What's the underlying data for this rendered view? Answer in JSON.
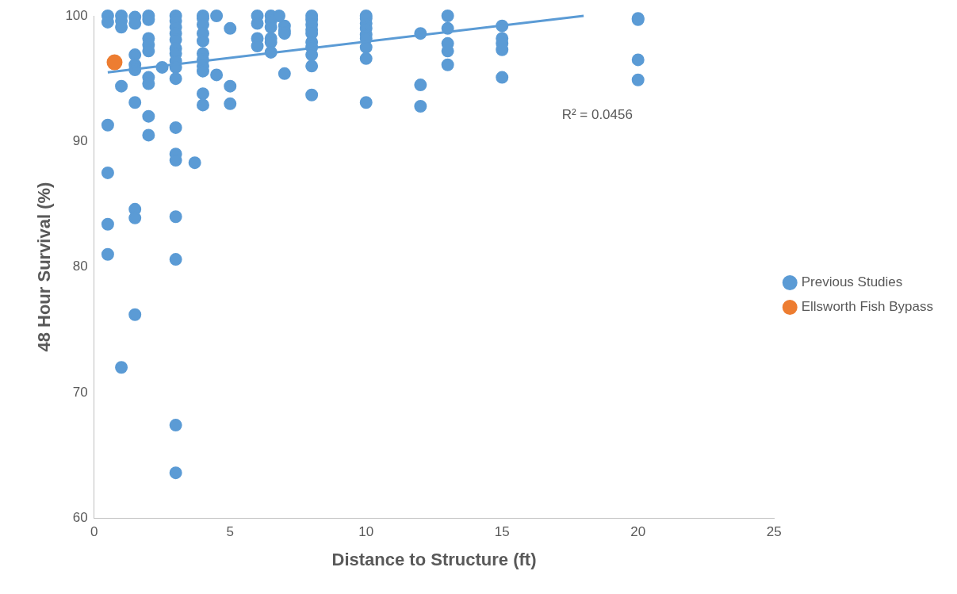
{
  "chart_data": {
    "type": "scatter",
    "xlabel": "Distance to Structure (ft)",
    "ylabel": "48 Hour Survival (%)",
    "xlim": [
      0,
      25
    ],
    "xticks": [
      0,
      5,
      10,
      15,
      20,
      25
    ],
    "ylim": [
      60,
      100
    ],
    "yticks": [
      60,
      70,
      80,
      90,
      100
    ],
    "grid": false,
    "legend": "right",
    "marker": "circle",
    "annotations": [
      "R² = 0.0456"
    ],
    "series": [
      {
        "name": "Previous Studies",
        "color": "#5b9bd5",
        "x": [
          0.5,
          0.5,
          0.5,
          0.5,
          0.5,
          0.5,
          1,
          1,
          1,
          1,
          1,
          1.5,
          1.5,
          1.5,
          1.5,
          1.5,
          1.5,
          1.5,
          1.5,
          1.5,
          2,
          2,
          2,
          2,
          2,
          2,
          2,
          2,
          2,
          2.5,
          3,
          3,
          3,
          3,
          3,
          3,
          3,
          3,
          3,
          3,
          3,
          3,
          3,
          3,
          3,
          3,
          3,
          3.7,
          4,
          4,
          4,
          4,
          4,
          4,
          4,
          4,
          4,
          4,
          4,
          4.5,
          4.5,
          5,
          5,
          5,
          6,
          6,
          6,
          6,
          6.5,
          6.5,
          6.5,
          6.5,
          6.5,
          6.5,
          6.8,
          7,
          7,
          7,
          7,
          8,
          8,
          8,
          8,
          8,
          8,
          8,
          8,
          8,
          8,
          10,
          10,
          10,
          10,
          10,
          10,
          10,
          10,
          10,
          12,
          12,
          12,
          13,
          13,
          13,
          13,
          13,
          15,
          15,
          15,
          15,
          15,
          20,
          20,
          20,
          20
        ],
        "values": [
          100,
          99.5,
          91.3,
          87.5,
          83.4,
          81.0,
          100,
          99.6,
          99.1,
          94.4,
          72.0,
          99.9,
          99.4,
          96.9,
          96.1,
          95.7,
          93.1,
          84.6,
          83.9,
          76.2,
          100,
          99.7,
          98.2,
          97.7,
          97.2,
          95.1,
          94.6,
          92.0,
          90.5,
          95.9,
          100,
          99.6,
          99.1,
          98.6,
          98.1,
          97.4,
          97.0,
          96.4,
          95.9,
          95.0,
          91.1,
          89.0,
          88.5,
          84.0,
          80.6,
          67.4,
          63.6,
          88.3,
          100,
          99.8,
          99.3,
          98.6,
          98.0,
          97.0,
          96.5,
          96.0,
          95.6,
          93.8,
          92.9,
          100,
          95.3,
          99.0,
          94.4,
          93.0,
          100,
          99.4,
          98.2,
          97.6,
          100,
          99.6,
          99.1,
          98.2,
          97.9,
          97.1,
          100,
          99.2,
          98.8,
          98.6,
          95.4,
          100,
          99.7,
          99.3,
          98.9,
          98.6,
          97.9,
          97.5,
          96.9,
          96.0,
          93.7,
          100,
          99.8,
          99.4,
          99.0,
          98.5,
          98.2,
          97.5,
          96.6,
          93.1,
          98.6,
          94.5,
          92.8,
          100,
          99.0,
          97.8,
          97.2,
          96.1,
          99.2,
          98.2,
          97.8,
          97.3,
          95.1,
          99.8,
          99.7,
          96.5,
          94.9
        ]
      },
      {
        "name": "Ellsworth Fish Bypass",
        "color": "#ed7d31",
        "x": [
          0.75
        ],
        "values": [
          96.3
        ]
      },
      {
        "type": "line",
        "marker": "none",
        "color": "#5b9bd5",
        "x": [
          0.5,
          18
        ],
        "values": [
          95.5,
          100
        ]
      }
    ]
  }
}
